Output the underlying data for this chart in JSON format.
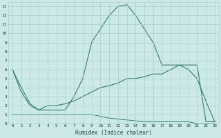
{
  "xlabel": "Humidex (Indice chaleur)",
  "x_values": [
    0,
    1,
    2,
    3,
    4,
    5,
    6,
    7,
    8,
    9,
    10,
    11,
    12,
    13,
    14,
    15,
    16,
    17,
    18,
    19,
    20,
    21,
    22,
    23
  ],
  "line1_y": [
    6,
    3.5,
    2.0,
    1.5,
    1.5,
    1.5,
    1.5,
    3.0,
    5.0,
    9.0,
    10.5,
    12.0,
    13.0,
    13.2,
    12.0,
    10.5,
    9.0,
    6.5,
    6.5,
    6.5,
    6.0,
    5.0,
    2.5,
    0.2
  ],
  "line2_y": [
    6,
    4.0,
    2.2,
    1.5,
    2.0,
    2.0,
    2.2,
    2.5,
    3.0,
    3.5,
    4.0,
    4.2,
    4.5,
    5.0,
    5.0,
    5.2,
    5.5,
    5.5,
    6.0,
    6.5,
    6.5,
    6.5,
    0.2,
    0.2
  ],
  "line3_y": [
    1,
    1,
    1,
    1,
    1,
    1,
    1,
    1,
    1,
    1,
    0.8,
    0.6,
    0.5,
    0.4,
    0.3,
    0.2,
    0.2,
    0.2,
    0.2,
    0.2,
    0.2,
    0.0,
    0.0,
    0.0
  ],
  "line_color": "#2e7d6e",
  "bg_color": "#cce8e8",
  "grid_color": "#a8d0d0",
  "ylim": [
    0,
    13.5
  ],
  "xlim": [
    -0.5,
    23.5
  ],
  "yticks": [
    0,
    1,
    2,
    3,
    4,
    5,
    6,
    7,
    8,
    9,
    10,
    11,
    12,
    13
  ],
  "xticks": [
    0,
    1,
    2,
    3,
    4,
    5,
    6,
    7,
    8,
    9,
    10,
    11,
    12,
    13,
    14,
    15,
    16,
    17,
    18,
    19,
    20,
    21,
    22,
    23
  ]
}
